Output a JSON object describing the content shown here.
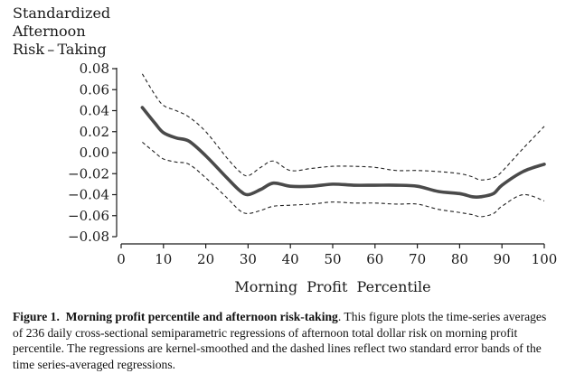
{
  "chart_data": {
    "type": "line",
    "ylabel_lines": [
      "Standardized",
      "Afternoon",
      "Risk – Taking"
    ],
    "xlabel": "Morning  Profit  Percentile",
    "xlim": [
      0,
      100
    ],
    "ylim": [
      -0.08,
      0.08
    ],
    "x_ticks": [
      0,
      10,
      20,
      30,
      40,
      50,
      60,
      70,
      80,
      90,
      100
    ],
    "y_ticks": [
      0.08,
      0.06,
      0.04,
      0.02,
      0.0,
      -0.02,
      -0.04,
      -0.06,
      -0.08
    ],
    "y_tick_labels": [
      "0.08",
      "0.06",
      "0.04",
      "0.02",
      "0.00",
      "−0.02",
      "−0.04",
      "−0.06",
      "−0.08"
    ],
    "grid": false,
    "x": [
      5,
      8,
      10,
      13,
      16,
      20,
      25,
      28,
      30,
      33,
      36,
      40,
      45,
      50,
      55,
      60,
      65,
      70,
      75,
      80,
      83,
      85,
      88,
      90,
      95,
      100
    ],
    "series": [
      {
        "style": "solid",
        "color": "#4a4a4a",
        "values": [
          0.043,
          0.028,
          0.019,
          0.014,
          0.011,
          -0.003,
          -0.024,
          -0.036,
          -0.04,
          -0.035,
          -0.029,
          -0.032,
          -0.032,
          -0.03,
          -0.031,
          -0.031,
          -0.031,
          -0.032,
          -0.037,
          -0.039,
          -0.042,
          -0.042,
          -0.039,
          -0.031,
          -0.018,
          -0.011
        ]
      },
      {
        "style": "dashed",
        "color": "#222222",
        "values": [
          0.075,
          0.055,
          0.045,
          0.04,
          0.034,
          0.02,
          -0.005,
          -0.018,
          -0.022,
          -0.014,
          -0.008,
          -0.017,
          -0.015,
          -0.013,
          -0.013,
          -0.014,
          -0.017,
          -0.017,
          -0.018,
          -0.02,
          -0.023,
          -0.026,
          -0.024,
          -0.018,
          0.004,
          0.025
        ]
      },
      {
        "style": "dashed",
        "color": "#222222",
        "values": [
          0.01,
          0.0,
          -0.006,
          -0.009,
          -0.011,
          -0.024,
          -0.043,
          -0.055,
          -0.058,
          -0.055,
          -0.051,
          -0.05,
          -0.049,
          -0.047,
          -0.048,
          -0.048,
          -0.049,
          -0.049,
          -0.054,
          -0.057,
          -0.059,
          -0.061,
          -0.058,
          -0.051,
          -0.04,
          -0.046
        ]
      }
    ]
  },
  "caption": {
    "label": "Figure 1.",
    "title": "Morning profit percentile and afternoon risk-taking",
    "body": ". This figure plots the time-series averages of 236 daily cross-sectional semiparametric regressions of afternoon total dollar risk on morning profit percentile. The regressions are kernel-smoothed and the dashed lines reflect two standard error bands of the time series-averaged regressions."
  }
}
